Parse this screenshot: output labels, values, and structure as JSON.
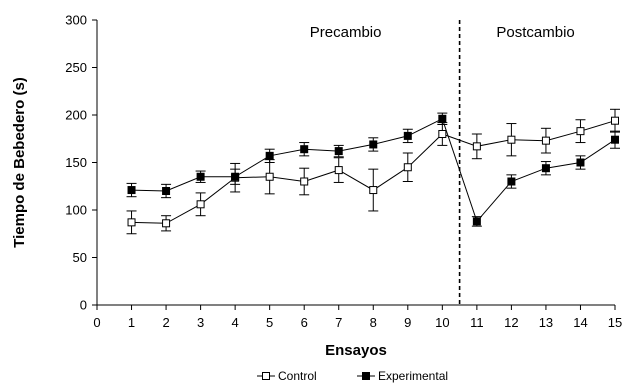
{
  "chart_data": {
    "type": "line",
    "xlabel": "Ensayos",
    "ylabel": "Tiempo de Bebedero (s)",
    "xlim": [
      0,
      15
    ],
    "ylim": [
      0,
      300
    ],
    "xticks": [
      0,
      1,
      2,
      3,
      4,
      5,
      6,
      7,
      8,
      9,
      10,
      11,
      12,
      13,
      14,
      15
    ],
    "yticks": [
      0,
      50,
      100,
      150,
      200,
      250,
      300
    ],
    "grid": false,
    "legend_position": "bottom",
    "change_marker_x": 10.5,
    "regions": [
      {
        "label": "Precambio",
        "x_center": 7.2
      },
      {
        "label": "Postcambio",
        "x_center": 12.7
      }
    ],
    "series": [
      {
        "name": "Control",
        "marker": "open-square",
        "x": [
          1,
          2,
          3,
          4,
          5,
          6,
          7,
          8,
          9,
          10,
          11,
          12,
          13,
          14,
          15
        ],
        "values": [
          87,
          86,
          106,
          134,
          135,
          130,
          142,
          121,
          145,
          180,
          167,
          174,
          173,
          183,
          194
        ],
        "error": [
          12,
          8,
          12,
          15,
          18,
          14,
          13,
          22,
          15,
          12,
          13,
          17,
          13,
          12,
          12
        ]
      },
      {
        "name": "Experimental",
        "marker": "filled-square",
        "x": [
          1,
          2,
          3,
          4,
          5,
          6,
          7,
          8,
          9,
          10,
          11,
          12,
          13,
          14,
          15
        ],
        "values": [
          121,
          120,
          135,
          135,
          157,
          164,
          162,
          169,
          178,
          196,
          88,
          130,
          144,
          150,
          174
        ],
        "error": [
          7,
          7,
          6,
          8,
          7,
          7,
          6,
          7,
          7,
          6,
          5,
          7,
          7,
          7,
          9
        ]
      }
    ]
  }
}
